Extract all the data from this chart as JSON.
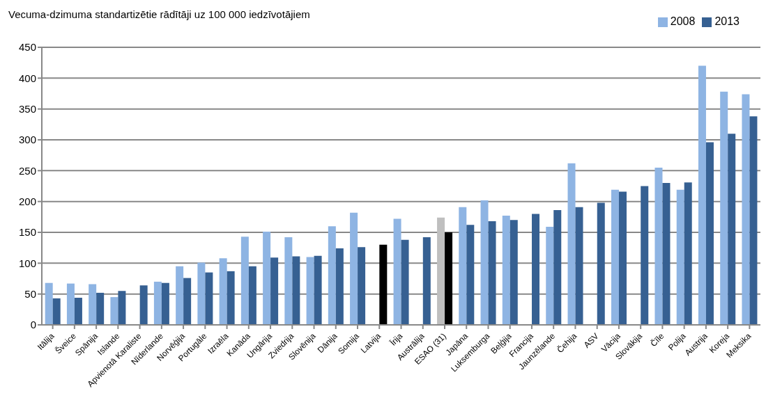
{
  "chart_data": {
    "type": "bar",
    "title": "Vecuma-dzimuma standartizētie rādītāji uz 100 000 iedzīvotājiem",
    "categories": [
      "Itālija",
      "Šveice",
      "Spānija",
      "Islande",
      "Apvienotā Karaliste",
      "Nīderlande",
      "Norvēģija",
      "Portugāle",
      "Izraēla",
      "Kanāda",
      "Ungārija",
      "Zviedrija",
      "Slovēnija",
      "Dānija",
      "Somija",
      "Latvija",
      "Īrija",
      "Austrālija",
      "ESAO (31)",
      "Japāna",
      "Luksemburga",
      "Beļģija",
      "Francija",
      "Jaunzēlande",
      "Čehija",
      "ASV",
      "Vācija",
      "Slovākija",
      "Čīle",
      "Polija",
      "Austrija",
      "Koreja",
      "Meksika"
    ],
    "series": [
      {
        "name": "2008",
        "color": "#8eb4e3",
        "values": [
          68,
          67,
          66,
          45,
          null,
          70,
          95,
          101,
          108,
          143,
          151,
          142,
          110,
          160,
          182,
          null,
          172,
          null,
          174,
          191,
          202,
          177,
          null,
          159,
          262,
          null,
          219,
          null,
          255,
          219,
          420,
          378,
          374
        ],
        "colors": [
          "#8eb4e3",
          "#8eb4e3",
          "#8eb4e3",
          "#8eb4e3",
          "#8eb4e3",
          "#8eb4e3",
          "#8eb4e3",
          "#8eb4e3",
          "#8eb4e3",
          "#8eb4e3",
          "#8eb4e3",
          "#8eb4e3",
          "#8eb4e3",
          "#8eb4e3",
          "#8eb4e3",
          "#8eb4e3",
          "#8eb4e3",
          "#8eb4e3",
          "#bfbfbf",
          "#8eb4e3",
          "#8eb4e3",
          "#8eb4e3",
          "#8eb4e3",
          "#8eb4e3",
          "#8eb4e3",
          "#8eb4e3",
          "#8eb4e3",
          "#8eb4e3",
          "#8eb4e3",
          "#8eb4e3",
          "#8eb4e3",
          "#8eb4e3",
          "#8eb4e3"
        ]
      },
      {
        "name": "2013",
        "color": "#366092",
        "values": [
          43,
          44,
          52,
          55,
          64,
          68,
          76,
          85,
          87,
          95,
          109,
          111,
          112,
          124,
          126,
          130,
          138,
          142,
          150,
          162,
          168,
          170,
          180,
          186,
          191,
          198,
          216,
          225,
          230,
          231,
          296,
          310,
          338
        ],
        "colors": [
          "#366092",
          "#366092",
          "#366092",
          "#366092",
          "#366092",
          "#366092",
          "#366092",
          "#366092",
          "#366092",
          "#366092",
          "#366092",
          "#366092",
          "#366092",
          "#366092",
          "#366092",
          "#000000",
          "#366092",
          "#366092",
          "#000000",
          "#366092",
          "#366092",
          "#366092",
          "#366092",
          "#366092",
          "#366092",
          "#366092",
          "#366092",
          "#366092",
          "#366092",
          "#366092",
          "#366092",
          "#366092",
          "#366092"
        ]
      }
    ],
    "ylim": [
      0,
      450
    ],
    "yticks": [
      0,
      50,
      100,
      150,
      200,
      250,
      300,
      350,
      400,
      450
    ],
    "grid": "y",
    "legend": "top right"
  }
}
